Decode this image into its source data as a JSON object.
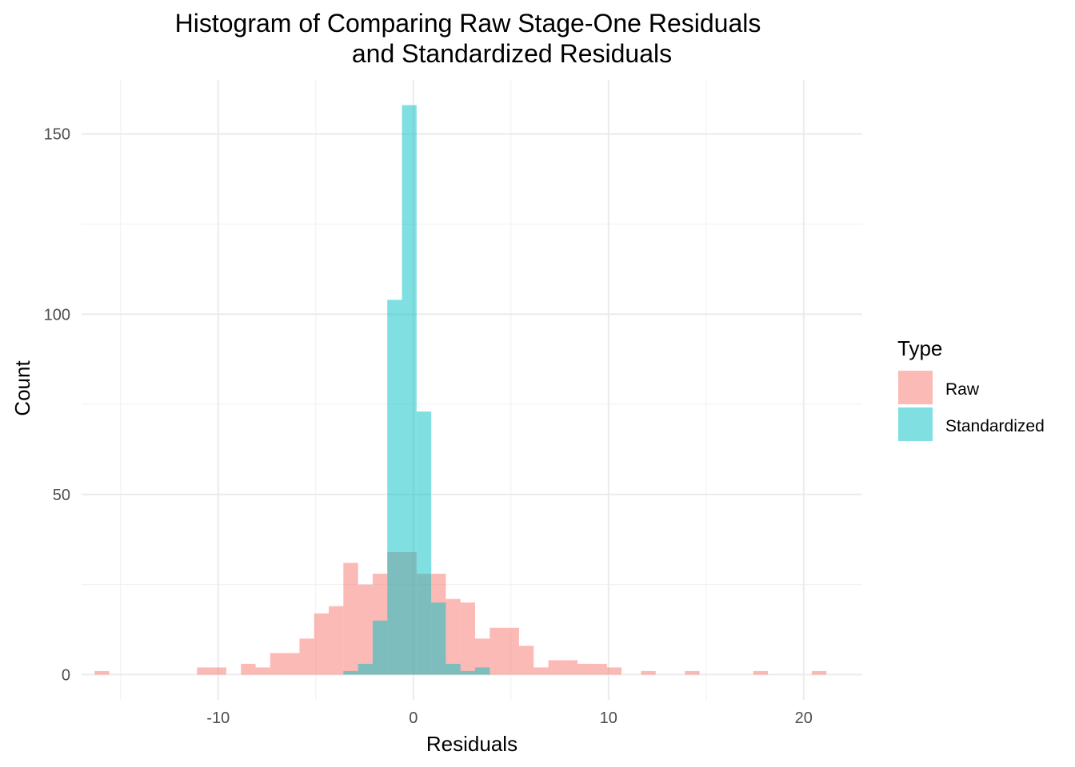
{
  "chart_data": {
    "type": "bar",
    "subtype": "histogram-overlay",
    "title": [
      "Histogram of Comparing Raw Stage-One Residuals",
      "and Standardized Residuals"
    ],
    "xlabel": "Residuals",
    "ylabel": "Count",
    "xlim": [
      -17,
      23
    ],
    "ylim": [
      -7,
      165
    ],
    "x_ticks": [
      -10,
      0,
      10,
      20
    ],
    "x_tick_labels": [
      "-10",
      "0",
      "10",
      "20"
    ],
    "y_ticks": [
      0,
      50,
      100,
      150
    ],
    "y_tick_labels": [
      "0",
      "50",
      "100",
      "150"
    ],
    "grid": true,
    "bin_width": 0.75,
    "legend": {
      "title": "Type",
      "position": "right",
      "entries": [
        "Raw",
        "Standardized"
      ]
    },
    "series": [
      {
        "name": "Raw",
        "color": "#F8766D",
        "opacity": 0.5,
        "bins": [
          {
            "x": -15.96,
            "count": 1
          },
          {
            "x": -10.71,
            "count": 2
          },
          {
            "x": -9.96,
            "count": 2
          },
          {
            "x": -8.46,
            "count": 3
          },
          {
            "x": -7.71,
            "count": 2
          },
          {
            "x": -6.96,
            "count": 6
          },
          {
            "x": -6.21,
            "count": 6
          },
          {
            "x": -5.46,
            "count": 10
          },
          {
            "x": -4.71,
            "count": 17
          },
          {
            "x": -3.96,
            "count": 19
          },
          {
            "x": -3.21,
            "count": 31
          },
          {
            "x": -2.46,
            "count": 25
          },
          {
            "x": -1.71,
            "count": 28
          },
          {
            "x": -0.96,
            "count": 34
          },
          {
            "x": -0.21,
            "count": 34
          },
          {
            "x": 0.54,
            "count": 28
          },
          {
            "x": 1.29,
            "count": 28
          },
          {
            "x": 2.04,
            "count": 21
          },
          {
            "x": 2.79,
            "count": 20
          },
          {
            "x": 3.54,
            "count": 10
          },
          {
            "x": 4.29,
            "count": 13
          },
          {
            "x": 5.04,
            "count": 13
          },
          {
            "x": 5.79,
            "count": 8
          },
          {
            "x": 6.54,
            "count": 2
          },
          {
            "x": 7.29,
            "count": 4
          },
          {
            "x": 8.04,
            "count": 4
          },
          {
            "x": 8.79,
            "count": 3
          },
          {
            "x": 9.54,
            "count": 3
          },
          {
            "x": 10.29,
            "count": 2
          },
          {
            "x": 12.04,
            "count": 1
          },
          {
            "x": 14.29,
            "count": 1
          },
          {
            "x": 17.79,
            "count": 1
          },
          {
            "x": 20.79,
            "count": 1
          }
        ]
      },
      {
        "name": "Standardized",
        "color": "#00BFC4",
        "opacity": 0.5,
        "bins": [
          {
            "x": -3.21,
            "count": 1
          },
          {
            "x": -2.46,
            "count": 3
          },
          {
            "x": -1.71,
            "count": 15
          },
          {
            "x": -0.96,
            "count": 104
          },
          {
            "x": -0.21,
            "count": 158
          },
          {
            "x": 0.54,
            "count": 73
          },
          {
            "x": 1.29,
            "count": 20
          },
          {
            "x": 2.04,
            "count": 3
          },
          {
            "x": 2.79,
            "count": 1
          },
          {
            "x": 3.54,
            "count": 2
          }
        ]
      }
    ]
  }
}
